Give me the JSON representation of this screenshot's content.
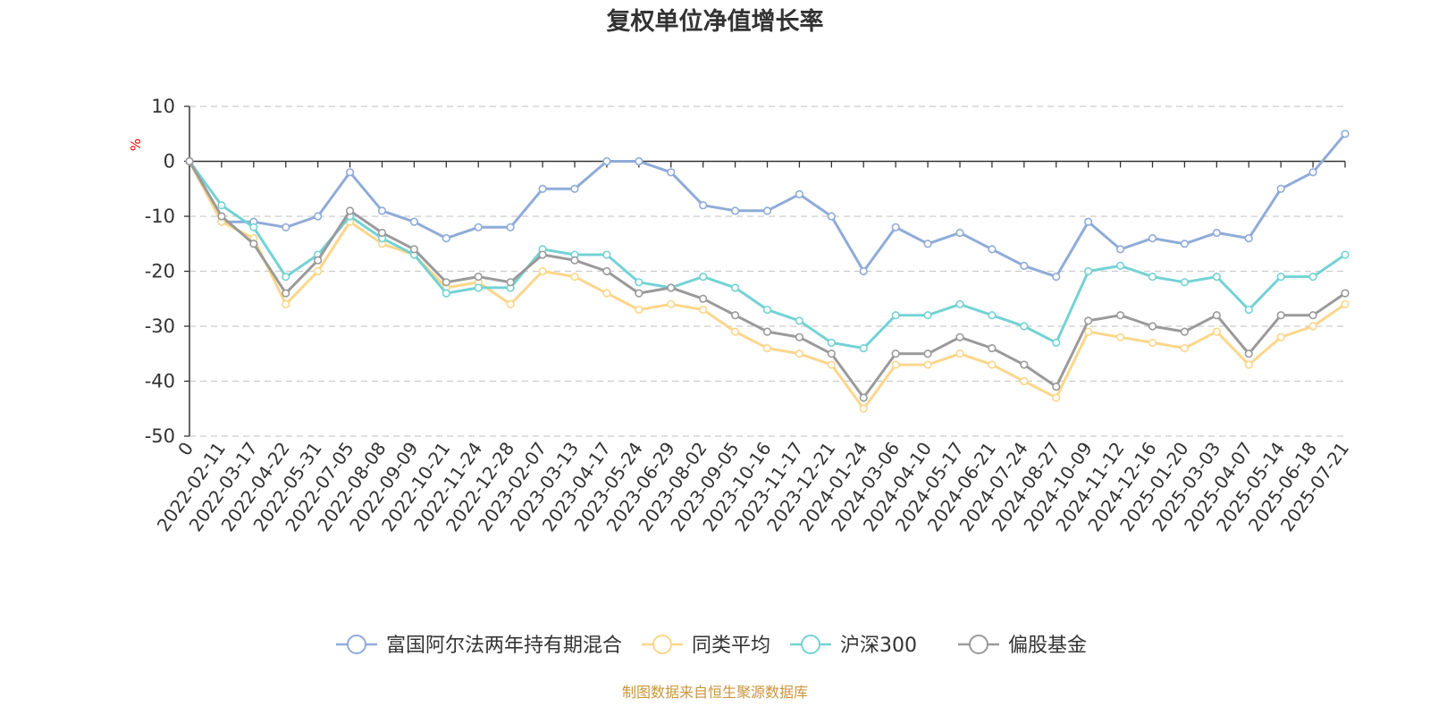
{
  "chart_data": {
    "type": "line",
    "title": "复权单位净值增长率",
    "ylabel": "%",
    "source": "制图数据来自恒生聚源数据库",
    "ylim": [
      -50,
      10
    ],
    "yticks": [
      10,
      0,
      -10,
      -20,
      -30,
      -40,
      -50
    ],
    "grid": true,
    "legend_position": "bottom",
    "x_ticks": [
      "0",
      "2022-02-11",
      "2022-03-17",
      "2022-04-22",
      "2022-05-31",
      "2022-07-05",
      "2022-08-08",
      "2022-09-09",
      "2022-10-21",
      "2022-11-24",
      "2022-12-28",
      "2023-02-07",
      "2023-03-13",
      "2023-04-17",
      "2023-05-24",
      "2023-06-29",
      "2023-08-02",
      "2023-09-05",
      "2023-10-16",
      "2023-11-17",
      "2023-12-21",
      "2024-01-24",
      "2024-03-06",
      "2024-04-10",
      "2024-05-17",
      "2024-06-21",
      "2024-07-24",
      "2024-08-27",
      "2024-10-09",
      "2024-11-12",
      "2024-12-16",
      "2025-01-20",
      "2025-03-03",
      "2025-04-07",
      "2025-05-14",
      "2025-06-18",
      "2025-07-21"
    ],
    "series": [
      {
        "name": "富国阿尔法两年持有期混合",
        "color": "#8fabd8",
        "values": [
          0,
          -11,
          -11,
          -12,
          -10,
          -2,
          -9,
          -11,
          -14,
          -12,
          -12,
          -5,
          -5,
          0,
          0,
          -2,
          -8,
          -9,
          -9,
          -6,
          -10,
          -20,
          -12,
          -15,
          -13,
          -16,
          -19,
          -21,
          -11,
          -16,
          -14,
          -15,
          -13,
          -14,
          -5,
          -2,
          5
        ]
      },
      {
        "name": "同类平均",
        "color": "#fcd68a",
        "values": [
          0,
          -11,
          -14,
          -26,
          -20,
          -11,
          -15,
          -17,
          -23,
          -22,
          -26,
          -20,
          -21,
          -24,
          -27,
          -26,
          -27,
          -31,
          -34,
          -35,
          -37,
          -45,
          -37,
          -37,
          -35,
          -37,
          -40,
          -43,
          -31,
          -32,
          -33,
          -34,
          -31,
          -37,
          -32,
          -30,
          -26
        ]
      },
      {
        "name": "沪深300",
        "color": "#74d2d4",
        "values": [
          0,
          -8,
          -12,
          -21,
          -17,
          -10,
          -14,
          -17,
          -24,
          -23,
          -23,
          -16,
          -17,
          -17,
          -22,
          -23,
          -21,
          -23,
          -27,
          -29,
          -33,
          -34,
          -28,
          -28,
          -26,
          -28,
          -30,
          -33,
          -20,
          -19,
          -21,
          -22,
          -21,
          -27,
          -21,
          -21,
          -17
        ]
      },
      {
        "name": "偏股基金",
        "color": "#9a9a9a",
        "values": [
          0,
          -10,
          -15,
          -24,
          -18,
          -9,
          -13,
          -16,
          -22,
          -21,
          -22,
          -17,
          -18,
          -20,
          -24,
          -23,
          -25,
          -28,
          -31,
          -32,
          -35,
          -43,
          -35,
          -35,
          -32,
          -34,
          -37,
          -41,
          -29,
          -28,
          -30,
          -31,
          -28,
          -35,
          -28,
          -28,
          -24
        ]
      }
    ]
  }
}
